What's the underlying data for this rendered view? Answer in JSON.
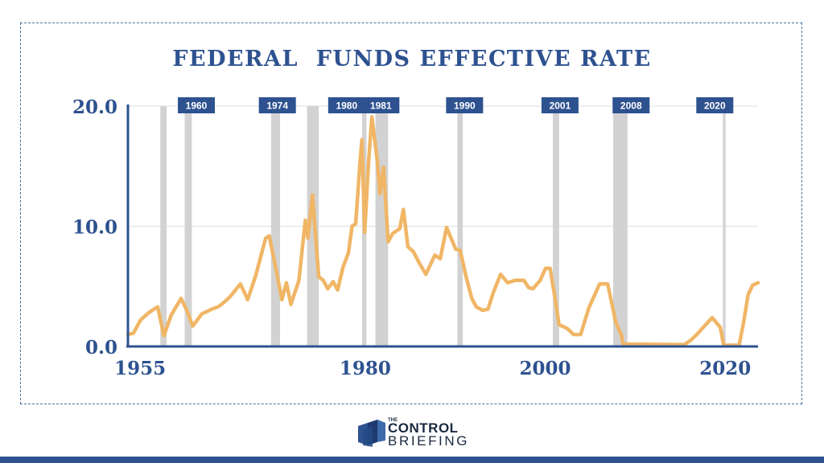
{
  "chart_data": {
    "type": "line",
    "title": "FEDERAL  FUNDS EFFECTIVE RATE",
    "xlabel": "",
    "ylabel": "",
    "xlim": [
      1954,
      2024
    ],
    "ylim": [
      0,
      20
    ],
    "y_ticks": [
      "0.0",
      "10.0",
      "20.0"
    ],
    "x_ticks": [
      1955,
      1980,
      2000,
      2020
    ],
    "grid": "horizontal",
    "line_color": "#f0b666",
    "recession_color": "#d2d2d2",
    "badge_color": "#2e5290",
    "recessions": [
      {
        "start": 1957.6,
        "end": 1958.3
      },
      {
        "start": 1960.3,
        "end": 1961.1
      },
      {
        "start": 1969.9,
        "end": 1970.9
      },
      {
        "start": 1973.9,
        "end": 1975.2
      },
      {
        "start": 1980.0,
        "end": 1980.5
      },
      {
        "start": 1981.5,
        "end": 1982.9
      },
      {
        "start": 1990.6,
        "end": 1991.2
      },
      {
        "start": 2001.2,
        "end": 2001.9
      },
      {
        "start": 2007.9,
        "end": 2009.5
      },
      {
        "start": 2020.1,
        "end": 2020.4
      }
    ],
    "annotations": [
      {
        "label": "1960",
        "x": 1961.6
      },
      {
        "label": "1974",
        "x": 1970.6
      },
      {
        "label": "1980",
        "x": 1978.3
      },
      {
        "label": "1981",
        "x": 1982.1
      },
      {
        "label": "1990",
        "x": 1991.4
      },
      {
        "label": "2001",
        "x": 2002.0
      },
      {
        "label": "2008",
        "x": 2009.9
      },
      {
        "label": "2020",
        "x": 2019.2
      }
    ],
    "series": [
      {
        "values": [
          [
            1954.0,
            1.0
          ],
          [
            1954.6,
            1.1
          ],
          [
            1955.4,
            2.2
          ],
          [
            1956.3,
            2.8
          ],
          [
            1957.3,
            3.3
          ],
          [
            1958.0,
            0.9
          ],
          [
            1958.8,
            2.6
          ],
          [
            1959.9,
            4.0
          ],
          [
            1960.6,
            2.9
          ],
          [
            1961.2,
            1.7
          ],
          [
            1962.2,
            2.7
          ],
          [
            1963.3,
            3.1
          ],
          [
            1964.0,
            3.3
          ],
          [
            1964.4,
            3.5
          ],
          [
            1965.3,
            4.1
          ],
          [
            1966.5,
            5.2
          ],
          [
            1967.3,
            3.9
          ],
          [
            1968.2,
            5.9
          ],
          [
            1969.3,
            9.0
          ],
          [
            1969.7,
            9.2
          ],
          [
            1970.3,
            7.0
          ],
          [
            1971.1,
            3.9
          ],
          [
            1971.6,
            5.3
          ],
          [
            1972.1,
            3.5
          ],
          [
            1973.0,
            5.5
          ],
          [
            1973.7,
            10.5
          ],
          [
            1974.0,
            9.0
          ],
          [
            1974.5,
            12.6
          ],
          [
            1975.2,
            5.8
          ],
          [
            1975.7,
            5.5
          ],
          [
            1976.2,
            4.8
          ],
          [
            1976.8,
            5.4
          ],
          [
            1977.3,
            4.7
          ],
          [
            1977.9,
            6.6
          ],
          [
            1978.5,
            7.8
          ],
          [
            1978.9,
            10.0
          ],
          [
            1979.3,
            10.2
          ],
          [
            1979.8,
            15.5
          ],
          [
            1980.0,
            17.2
          ],
          [
            1980.3,
            9.5
          ],
          [
            1980.7,
            15.0
          ],
          [
            1981.1,
            19.1
          ],
          [
            1981.7,
            15.5
          ],
          [
            1982.0,
            12.7
          ],
          [
            1982.4,
            14.9
          ],
          [
            1982.9,
            8.7
          ],
          [
            1983.4,
            9.4
          ],
          [
            1984.2,
            9.8
          ],
          [
            1984.6,
            11.4
          ],
          [
            1985.1,
            8.3
          ],
          [
            1985.7,
            7.9
          ],
          [
            1986.4,
            6.9
          ],
          [
            1987.1,
            6.0
          ],
          [
            1988.1,
            7.6
          ],
          [
            1988.7,
            7.3
          ],
          [
            1989.4,
            9.9
          ],
          [
            1990.4,
            8.1
          ],
          [
            1990.9,
            8.0
          ],
          [
            1991.6,
            5.7
          ],
          [
            1992.2,
            4.0
          ],
          [
            1992.7,
            3.3
          ],
          [
            1993.4,
            3.0
          ],
          [
            1994.0,
            3.1
          ],
          [
            1994.6,
            4.5
          ],
          [
            1995.4,
            6.0
          ],
          [
            1996.2,
            5.3
          ],
          [
            1997.0,
            5.5
          ],
          [
            1998.0,
            5.5
          ],
          [
            1998.5,
            4.9
          ],
          [
            1999.0,
            4.8
          ],
          [
            1999.8,
            5.5
          ],
          [
            2000.4,
            6.5
          ],
          [
            2000.9,
            6.5
          ],
          [
            2001.5,
            3.8
          ],
          [
            2001.9,
            1.8
          ],
          [
            2002.8,
            1.5
          ],
          [
            2003.5,
            1.0
          ],
          [
            2004.3,
            1.0
          ],
          [
            2005.2,
            3.2
          ],
          [
            2006.4,
            5.2
          ],
          [
            2007.3,
            5.2
          ],
          [
            2008.2,
            2.0
          ],
          [
            2008.8,
            1.0
          ],
          [
            2009.0,
            0.2
          ],
          [
            2015.8,
            0.15
          ],
          [
            2016.5,
            0.5
          ],
          [
            2017.2,
            1.0
          ],
          [
            2018.3,
            1.9
          ],
          [
            2018.9,
            2.4
          ],
          [
            2019.8,
            1.6
          ],
          [
            2020.2,
            0.1
          ],
          [
            2021.9,
            0.1
          ],
          [
            2022.4,
            2.0
          ],
          [
            2022.9,
            4.3
          ],
          [
            2023.4,
            5.1
          ],
          [
            2024.0,
            5.3
          ]
        ]
      }
    ]
  },
  "brand": {
    "line_small": "THE",
    "line1": "CONTROL",
    "line2": "BRIEFING"
  },
  "colors": {
    "accent": "#2e5290",
    "frame": "#4a6fa0"
  }
}
